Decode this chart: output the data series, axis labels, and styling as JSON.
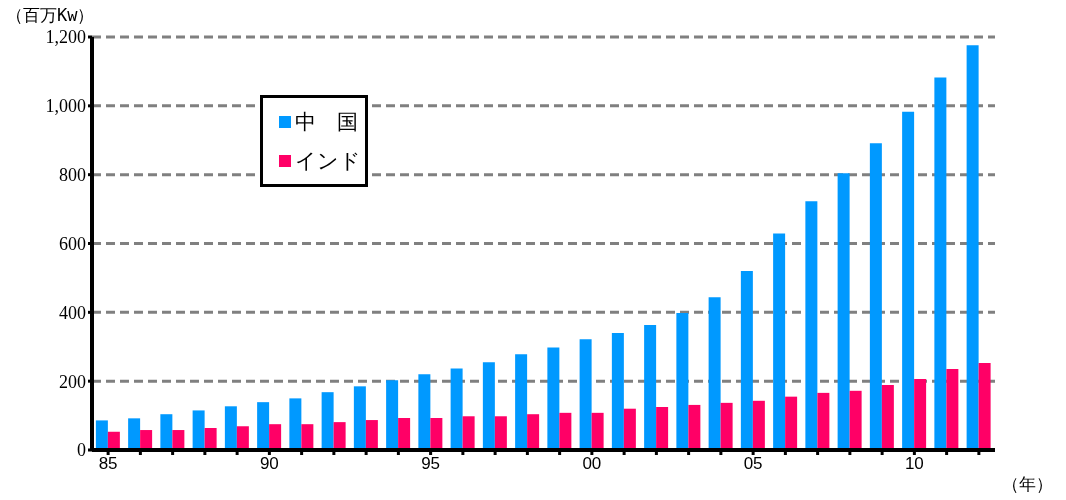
{
  "chart_data": {
    "type": "bar",
    "ylabel": "（百万Kw）",
    "xlabel": "（年）",
    "categories": [
      "85",
      null,
      null,
      null,
      null,
      "90",
      null,
      null,
      null,
      null,
      "95",
      null,
      null,
      null,
      null,
      "00",
      null,
      null,
      null,
      null,
      "05",
      null,
      null,
      null,
      null,
      "10",
      null,
      null
    ],
    "series": [
      {
        "name": "中　国",
        "color": "#0099ff",
        "values": [
          86,
          92,
          104,
          115,
          127,
          139,
          150,
          168,
          185,
          203,
          220,
          237,
          255,
          278,
          298,
          322,
          340,
          363,
          398,
          444,
          520,
          629,
          723,
          804,
          891,
          983,
          1082,
          1176
        ]
      },
      {
        "name": "インド",
        "color": "#ff0066",
        "values": [
          53,
          58,
          58,
          64,
          69,
          75,
          75,
          81,
          87,
          93,
          93,
          98,
          98,
          104,
          108,
          108,
          120,
          125,
          131,
          137,
          143,
          155,
          166,
          172,
          189,
          206,
          235,
          253
        ]
      }
    ],
    "ylim": [
      0,
      1200
    ],
    "yticks": [
      0,
      200,
      400,
      600,
      800,
      {
        "value": 1000,
        "label": "1,000"
      },
      {
        "value": 1200,
        "label": "1,200"
      }
    ],
    "grid": "y",
    "legend": "top left"
  }
}
